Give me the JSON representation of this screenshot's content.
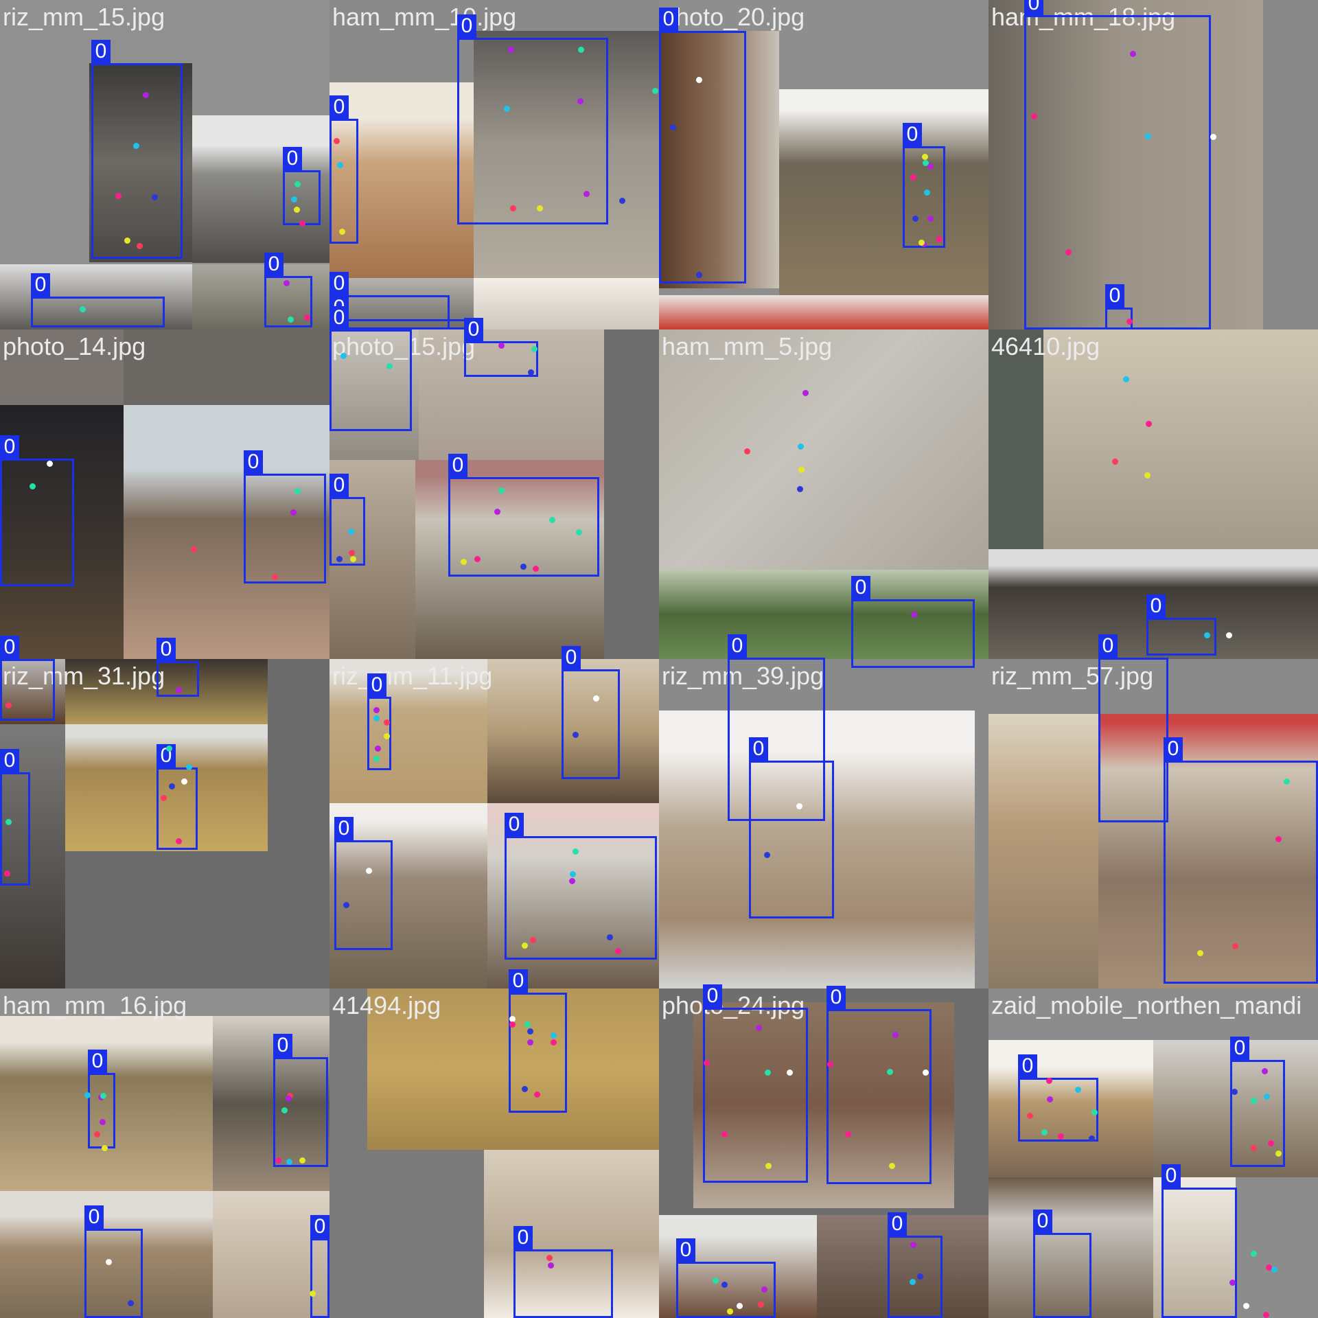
{
  "mosaic": {
    "label_color": "#1a2fe8",
    "keypoint_colors": [
      "#ff1f8a",
      "#26e0a8",
      "#e4e826",
      "#2a39d8",
      "#ff3b5c",
      "#ffffff",
      "#b41fe0",
      "#1fc2e8"
    ],
    "tiles": [
      {
        "filename": "riz_mm_15.jpg",
        "boxes": [
          {
            "class": "0"
          },
          {
            "class": "0"
          },
          {
            "class": "0"
          },
          {
            "class": "0"
          }
        ]
      },
      {
        "filename": "ham_mm_10.jpg",
        "boxes": [
          {
            "class": "0"
          },
          {
            "class": "0"
          },
          {
            "class": "0"
          },
          {
            "class": "0"
          }
        ]
      },
      {
        "filename": "photo_20.jpg",
        "boxes": [
          {
            "class": "0"
          },
          {
            "class": "0"
          }
        ]
      },
      {
        "filename": "ham_mm_18.jpg",
        "boxes": [
          {
            "class": "0"
          },
          {
            "class": "0"
          }
        ]
      },
      {
        "filename": "photo_14.jpg",
        "boxes": [
          {
            "class": "0"
          },
          {
            "class": "0"
          }
        ]
      },
      {
        "filename": "photo_15.jpg",
        "boxes": [
          {
            "class": "0"
          },
          {
            "class": "0"
          },
          {
            "class": "0"
          },
          {
            "class": "0"
          }
        ]
      },
      {
        "filename": "ham_mm_5.jpg",
        "boxes": [
          {
            "class": "0"
          },
          {
            "class": "0"
          }
        ]
      },
      {
        "filename": "46410.jpg",
        "boxes": [
          {
            "class": "0"
          },
          {
            "class": "0"
          }
        ]
      },
      {
        "filename": "riz_mm_31.jpg",
        "boxes": [
          {
            "class": "0"
          },
          {
            "class": "0"
          },
          {
            "class": "0"
          },
          {
            "class": "0"
          }
        ]
      },
      {
        "filename": "riz_mm_11.jpg",
        "boxes": [
          {
            "class": "0"
          },
          {
            "class": "0"
          },
          {
            "class": "0"
          },
          {
            "class": "0"
          }
        ]
      },
      {
        "filename": "riz_mm_39.jpg",
        "boxes": [
          {
            "class": "0"
          }
        ]
      },
      {
        "filename": "riz_mm_57.jpg",
        "boxes": [
          {
            "class": "0"
          }
        ]
      },
      {
        "filename": "ham_mm_16.jpg",
        "boxes": [
          {
            "class": "0"
          },
          {
            "class": "0"
          },
          {
            "class": "0"
          },
          {
            "class": "0"
          }
        ]
      },
      {
        "filename": "41494.jpg",
        "boxes": [
          {
            "class": "0"
          },
          {
            "class": "0"
          }
        ]
      },
      {
        "filename": "photo_24.jpg",
        "boxes": [
          {
            "class": "0"
          },
          {
            "class": "0"
          },
          {
            "class": "0"
          },
          {
            "class": "0"
          }
        ]
      },
      {
        "filename": "zaid_mobile_northen_mandi",
        "boxes": [
          {
            "class": "0"
          },
          {
            "class": "0"
          },
          {
            "class": "0"
          },
          {
            "class": "0"
          }
        ]
      }
    ]
  }
}
